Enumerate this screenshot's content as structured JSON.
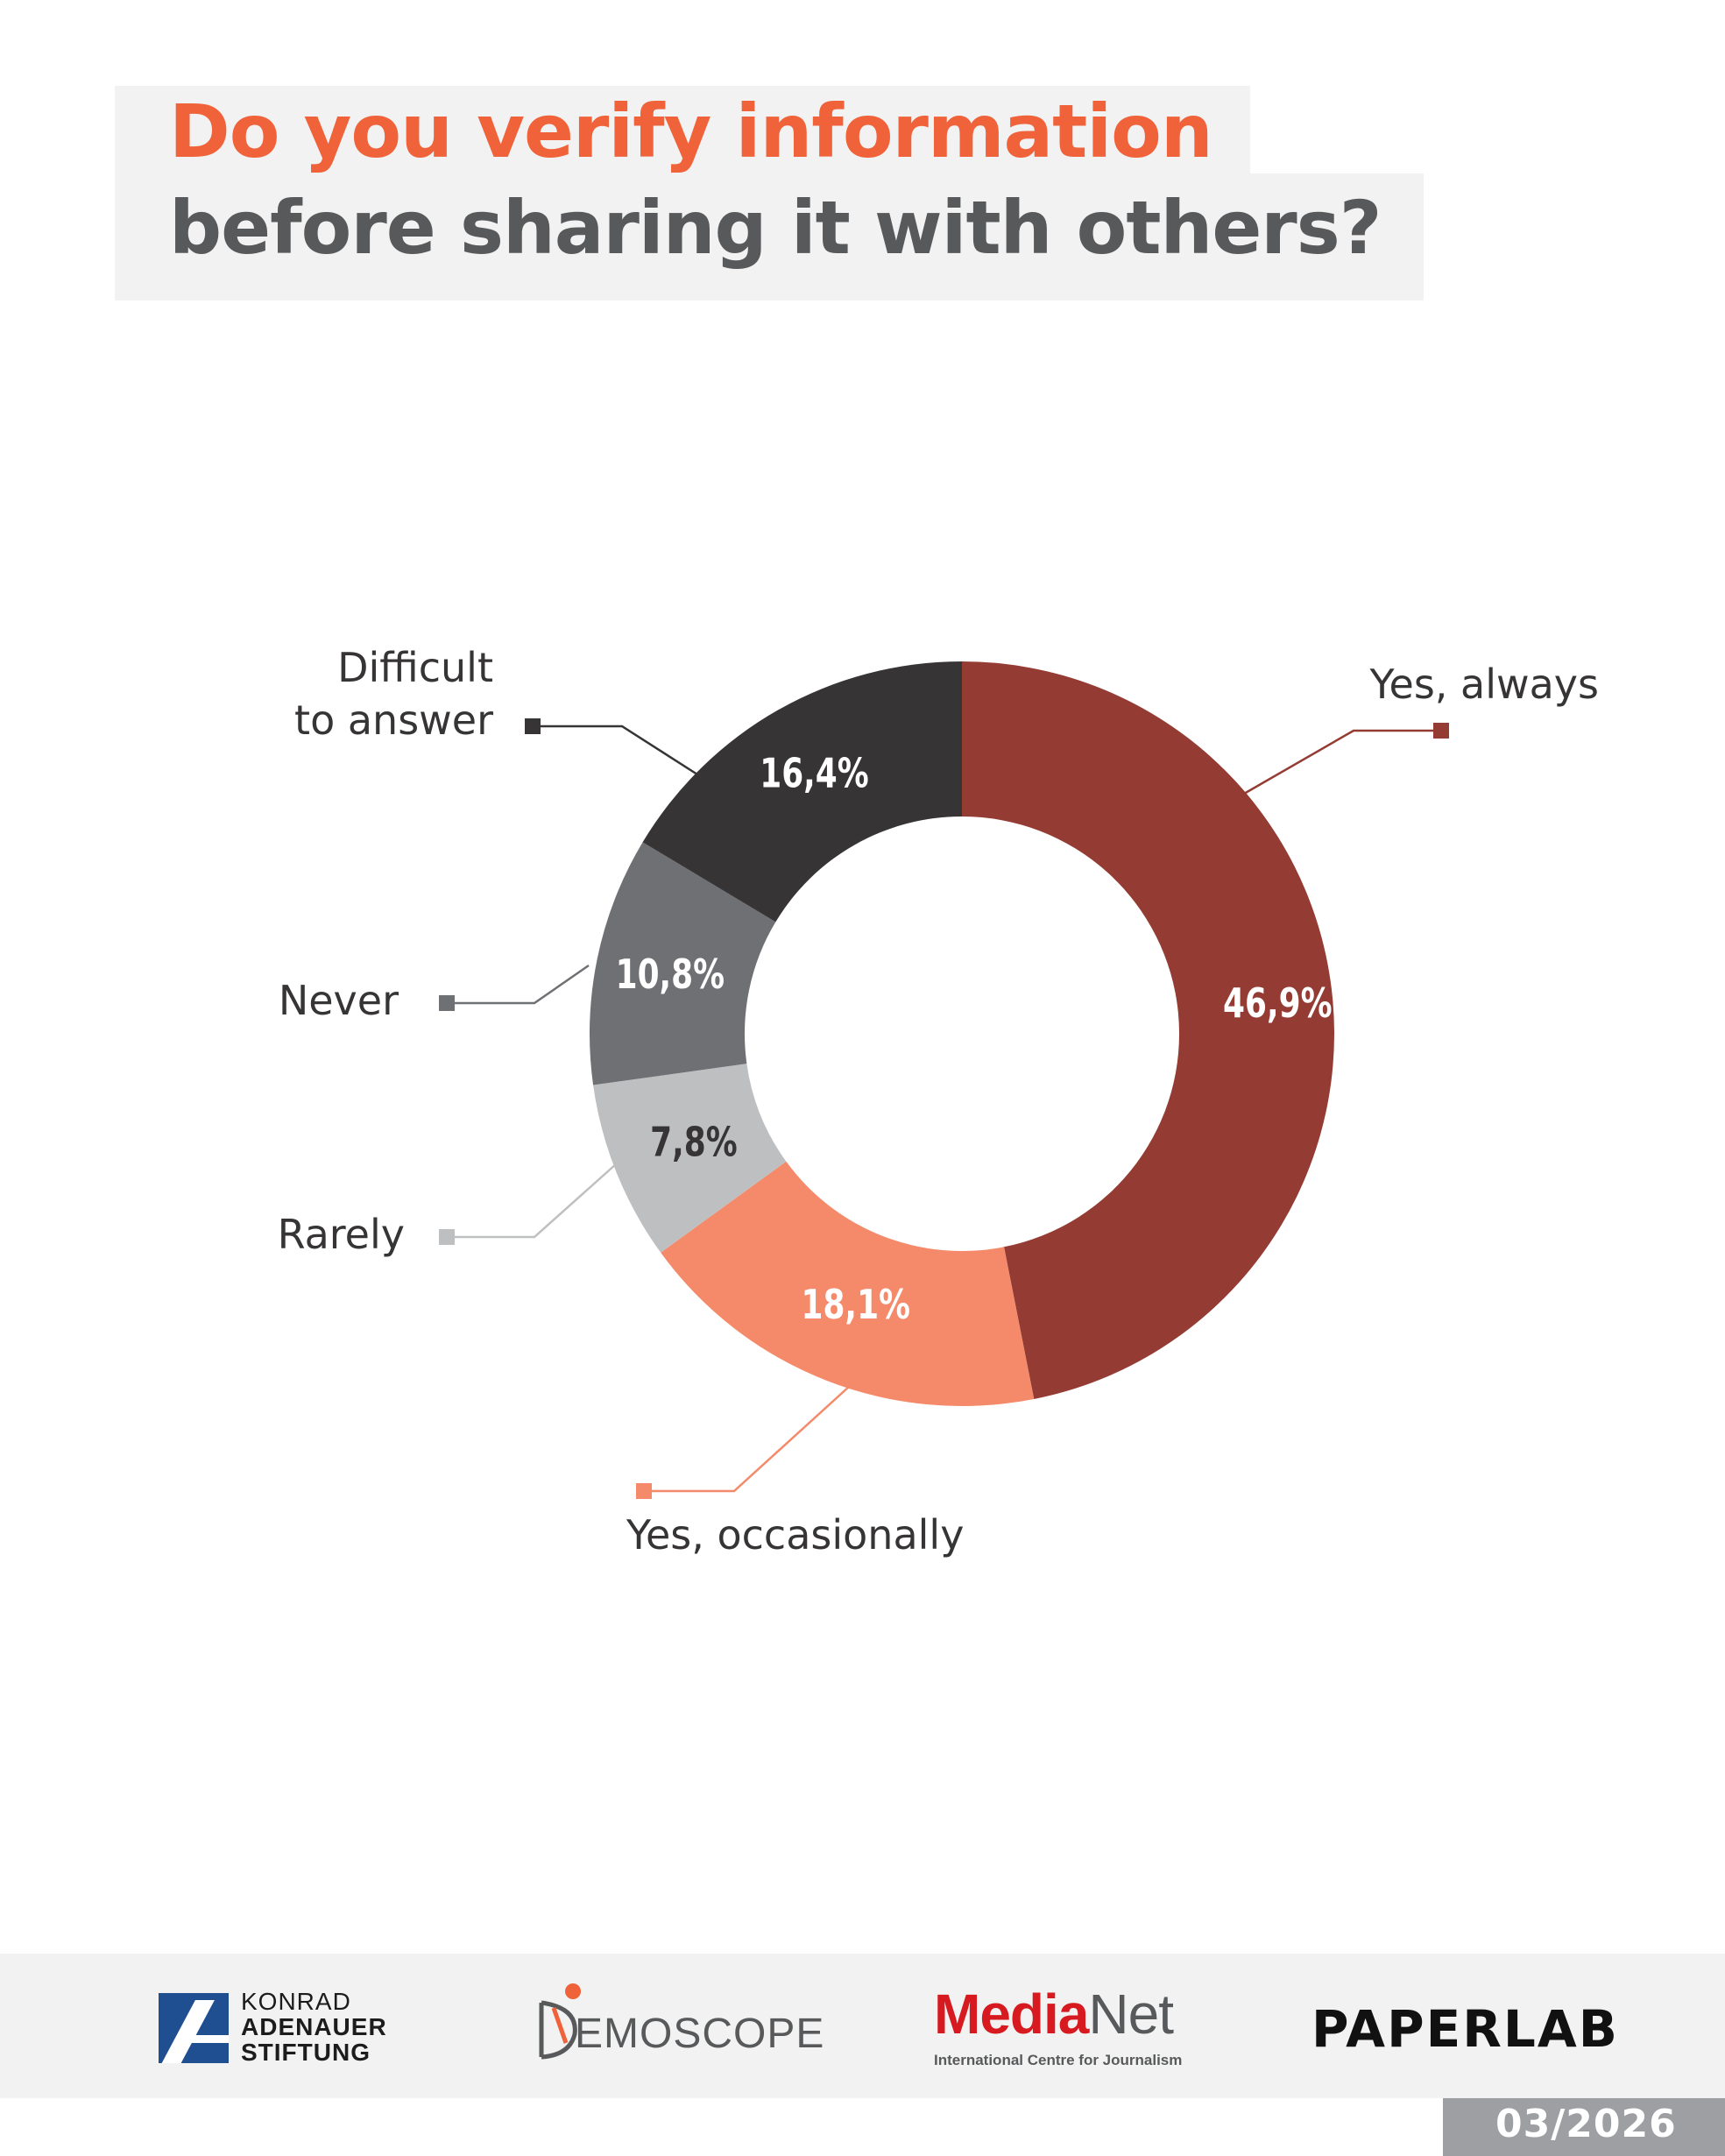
{
  "title": {
    "line1": "Do you verify information",
    "line2": "before sharing it with others?"
  },
  "chart_data": {
    "type": "pie",
    "variant": "donut",
    "categories": [
      "Yes, always",
      "Yes, occasionally",
      "Rarely",
      "Never",
      "Difficult to answer"
    ],
    "label_lines": [
      [
        "Yes, always"
      ],
      [
        "Yes, occasionally"
      ],
      [
        "Rarely"
      ],
      [
        "Never"
      ],
      [
        "Difficult",
        "to answer"
      ]
    ],
    "values": [
      46.9,
      18.1,
      7.8,
      10.8,
      16.4
    ],
    "value_labels": [
      "46,9%",
      "18,1%",
      "7,8%",
      "10,8%",
      "16,4%"
    ],
    "colors": [
      "#943c34",
      "#f58a6a",
      "#bebfc0",
      "#6f7073",
      "#363435"
    ],
    "value_label_colors": [
      "#ffffff",
      "#ffffff",
      "#363435",
      "#ffffff",
      "#ffffff"
    ],
    "start": "top",
    "direction": "clockwise"
  },
  "footer": {
    "kas_line1": "KONRAD",
    "kas_line2": "ADENAUER",
    "kas_line3": "STIFTUNG",
    "demoscope": "EMOSCOPE",
    "medianet_a": "Media",
    "medianet_b": "Net",
    "medianet_sub": "International Centre for Journalism",
    "paperlab": "PAPERLAB",
    "date": "03/2026"
  }
}
